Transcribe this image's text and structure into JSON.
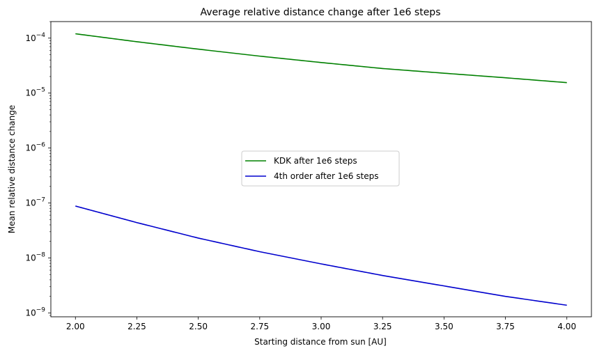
{
  "chart_data": {
    "type": "line",
    "title": "Average relative distance change after 1e6 steps",
    "xlabel": "Starting distance from sun [AU]",
    "ylabel": "Mean relative distance change",
    "xlim": [
      1.9,
      4.1
    ],
    "ylim": [
      8.5e-10,
      0.0002
    ],
    "yscale": "log",
    "grid": false,
    "legend_position": "center",
    "x_ticks": [
      2.0,
      2.25,
      2.5,
      2.75,
      3.0,
      3.25,
      3.5,
      3.75,
      4.0
    ],
    "x_tick_labels": [
      "2.00",
      "2.25",
      "2.50",
      "2.75",
      "3.00",
      "3.25",
      "3.50",
      "3.75",
      "4.00"
    ],
    "y_ticks": [
      1e-09,
      1e-08,
      1e-07,
      1e-06,
      1e-05,
      0.0001
    ],
    "y_tick_labels": [
      {
        "base": "10",
        "exp": "−9"
      },
      {
        "base": "10",
        "exp": "−8"
      },
      {
        "base": "10",
        "exp": "−7"
      },
      {
        "base": "10",
        "exp": "−6"
      },
      {
        "base": "10",
        "exp": "−5"
      },
      {
        "base": "10",
        "exp": "−4"
      }
    ],
    "x": [
      2.0,
      2.25,
      2.5,
      2.75,
      3.0,
      3.25,
      3.5,
      3.75,
      4.0
    ],
    "series": [
      {
        "name": "KDK after 1e6 steps",
        "color": "#008000",
        "values": [
          0.00012,
          8.6e-05,
          6.3e-05,
          4.7e-05,
          3.6e-05,
          2.8e-05,
          2.3e-05,
          1.9e-05,
          1.55e-05
        ]
      },
      {
        "name": "4th order after 1e6 steps",
        "color": "#0000cd",
        "values": [
          8.8e-08,
          4.4e-08,
          2.3e-08,
          1.3e-08,
          7.8e-09,
          4.8e-09,
          3.1e-09,
          2e-09,
          1.38e-09
        ]
      }
    ]
  }
}
